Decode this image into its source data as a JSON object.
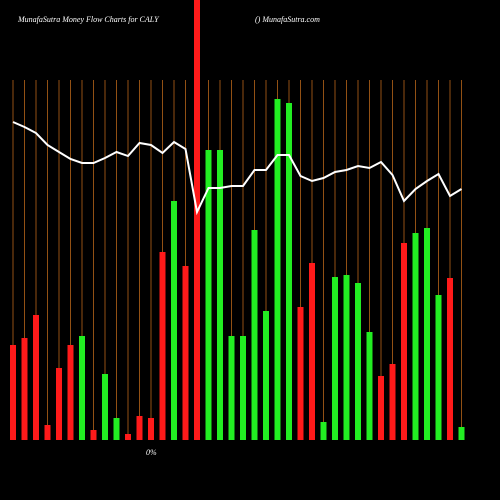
{
  "chart_data": {
    "type": "bar",
    "title": "MunafaSutra  Money Flow  Charts for CALY",
    "subtitle": "() MunafaSutra.com",
    "baseline_label": "0%",
    "categories": [
      null,
      null,
      null,
      null,
      null,
      null,
      null,
      null,
      null,
      null,
      null,
      null,
      null,
      null,
      null,
      null,
      null,
      null,
      null,
      null,
      null,
      null,
      null,
      null,
      null,
      null,
      null,
      null,
      null,
      null,
      null,
      null,
      null,
      null,
      null,
      null,
      null,
      null,
      null,
      null
    ],
    "values": [
      95,
      102,
      125,
      15,
      72,
      95,
      104,
      10,
      66,
      22,
      6,
      24,
      22,
      188,
      239,
      174,
      440,
      290,
      290,
      104,
      104,
      210,
      129,
      341,
      337,
      133,
      177,
      18,
      163,
      165,
      157,
      108,
      64,
      76,
      197,
      207,
      212,
      145,
      162,
      13
    ],
    "colors": [
      "#ff1a1a",
      "#ff1a1a",
      "#ff1a1a",
      "#ff1a1a",
      "#ff1a1a",
      "#ff1a1a",
      "#22ee22",
      "#ff1a1a",
      "#22ee22",
      "#22ee22",
      "#ff1a1a",
      "#ff1a1a",
      "#ff1a1a",
      "#ff1a1a",
      "#22ee22",
      "#ff1a1a",
      "#ff1a1a",
      "#22ee22",
      "#22ee22",
      "#22ee22",
      "#22ee22",
      "#22ee22",
      "#22ee22",
      "#22ee22",
      "#22ee22",
      "#ff1a1a",
      "#ff1a1a",
      "#22ee22",
      "#22ee22",
      "#22ee22",
      "#22ee22",
      "#22ee22",
      "#ff1a1a",
      "#ff1a1a",
      "#ff1a1a",
      "#22ee22",
      "#22ee22",
      "#22ee22",
      "#ff1a1a",
      "#22ee22"
    ],
    "line_values": [
      318,
      313,
      307,
      295,
      288,
      281,
      277,
      277,
      282,
      288,
      284,
      297,
      295,
      287,
      298,
      291,
      228,
      252,
      252,
      254,
      254,
      270,
      270,
      285,
      285,
      264,
      259,
      262,
      268,
      270,
      274,
      272,
      278,
      265,
      239,
      251,
      259,
      266,
      244,
      251
    ],
    "line_color": "#ffffff",
    "grid_color": "#b8661a",
    "ylim": [
      0,
      440
    ],
    "grid": true
  }
}
